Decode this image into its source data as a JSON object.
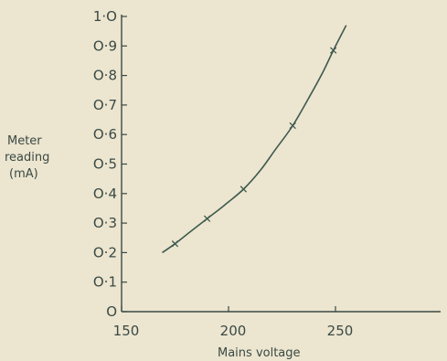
{
  "chart_data": {
    "type": "line",
    "title": "",
    "xlabel": "Mains voltage",
    "ylabel_lines": [
      "Meter",
      "reading",
      "(mA)"
    ],
    "xlim": [
      150,
      260
    ],
    "ylim": [
      0,
      1.0
    ],
    "x_ticks": [
      {
        "value": 150,
        "label": "150"
      },
      {
        "value": 200,
        "label": "200"
      },
      {
        "value": 250,
        "label": "250"
      }
    ],
    "y_ticks": [
      {
        "value": 0,
        "label": "O"
      },
      {
        "value": 0.1,
        "label": "O·1"
      },
      {
        "value": 0.2,
        "label": "O·2"
      },
      {
        "value": 0.3,
        "label": "O·3"
      },
      {
        "value": 0.4,
        "label": "O·4"
      },
      {
        "value": 0.5,
        "label": "O·5"
      },
      {
        "value": 0.6,
        "label": "O·6"
      },
      {
        "value": 0.7,
        "label": "O·7"
      },
      {
        "value": 0.8,
        "label": "O·8"
      },
      {
        "value": 0.9,
        "label": "O·9"
      },
      {
        "value": 1.0,
        "label": "1·O"
      }
    ],
    "points": [
      {
        "x": 175,
        "y": 0.23
      },
      {
        "x": 190,
        "y": 0.315
      },
      {
        "x": 207,
        "y": 0.415
      },
      {
        "x": 230,
        "y": 0.63
      },
      {
        "x": 249,
        "y": 0.885
      }
    ],
    "curve": [
      {
        "x": 169,
        "y": 0.2
      },
      {
        "x": 175,
        "y": 0.23
      },
      {
        "x": 182,
        "y": 0.27
      },
      {
        "x": 190,
        "y": 0.315
      },
      {
        "x": 198,
        "y": 0.36
      },
      {
        "x": 207,
        "y": 0.415
      },
      {
        "x": 215,
        "y": 0.48
      },
      {
        "x": 222,
        "y": 0.55
      },
      {
        "x": 230,
        "y": 0.63
      },
      {
        "x": 238,
        "y": 0.73
      },
      {
        "x": 244,
        "y": 0.81
      },
      {
        "x": 249,
        "y": 0.885
      },
      {
        "x": 255,
        "y": 0.97
      }
    ],
    "grid": false,
    "colors": {
      "line": "#3c5a4e",
      "marker": "#3c5a4e",
      "axis": "#3a4a45",
      "background": "#ece5cf"
    }
  }
}
